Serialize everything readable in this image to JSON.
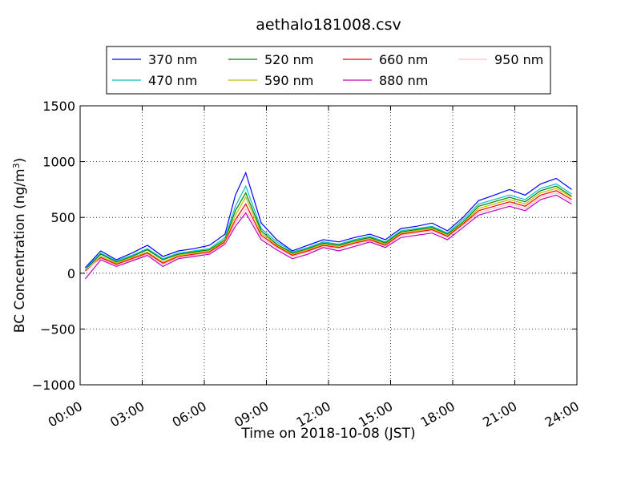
{
  "chart_data": {
    "type": "line",
    "title": "aethalo181008.csv",
    "xlabel": "Time on 2018-10-08 (JST)",
    "ylabel_main": "BC Concentration (ng/m",
    "ylabel_sup": "3",
    "ylabel_close": ")",
    "ylim": [
      -1000,
      1500
    ],
    "xlim_hours": [
      0,
      24
    ],
    "grid": true,
    "grid_style": "dotted",
    "legend_position": "top-center, above plot",
    "x_ticks": [
      {
        "hour": 0,
        "label": "00:00"
      },
      {
        "hour": 3,
        "label": "03:00"
      },
      {
        "hour": 6,
        "label": "06:00"
      },
      {
        "hour": 9,
        "label": "09:00"
      },
      {
        "hour": 12,
        "label": "12:00"
      },
      {
        "hour": 15,
        "label": "15:00"
      },
      {
        "hour": 18,
        "label": "18:00"
      },
      {
        "hour": 21,
        "label": "21:00"
      },
      {
        "hour": 24,
        "label": "24:00"
      }
    ],
    "y_ticks": [
      {
        "value": 1500,
        "label": "1500"
      },
      {
        "value": 1000,
        "label": "1000"
      },
      {
        "value": 500,
        "label": "500"
      },
      {
        "value": 0,
        "label": "0"
      },
      {
        "value": -500,
        "label": "−500"
      },
      {
        "value": -1000,
        "label": "−1000"
      }
    ],
    "x": [
      0.25,
      1.0,
      1.75,
      2.5,
      3.25,
      4.0,
      4.75,
      5.5,
      6.25,
      7.0,
      7.5,
      8.0,
      8.75,
      9.5,
      10.25,
      11.0,
      11.75,
      12.5,
      13.25,
      14.0,
      14.75,
      15.5,
      16.25,
      17.0,
      17.75,
      18.5,
      19.25,
      20.0,
      20.75,
      21.5,
      22.25,
      23.0,
      23.75
    ],
    "series": [
      {
        "name": "370 nm",
        "color": "#0000ff",
        "values": [
          50,
          200,
          120,
          180,
          250,
          150,
          200,
          220,
          250,
          350,
          700,
          900,
          450,
          300,
          200,
          250,
          300,
          280,
          320,
          350,
          300,
          400,
          420,
          450,
          380,
          500,
          650,
          700,
          750,
          700,
          800,
          850,
          750
        ]
      },
      {
        "name": "470 nm",
        "color": "#00bfbf",
        "values": [
          40,
          180,
          110,
          160,
          220,
          130,
          180,
          200,
          220,
          320,
          600,
          780,
          400,
          280,
          190,
          230,
          280,
          260,
          300,
          330,
          280,
          380,
          400,
          420,
          360,
          480,
          620,
          660,
          700,
          660,
          760,
          800,
          710
        ]
      },
      {
        "name": "520 nm",
        "color": "#008000",
        "values": [
          30,
          170,
          100,
          150,
          210,
          120,
          170,
          190,
          210,
          300,
          560,
          720,
          380,
          260,
          180,
          220,
          270,
          250,
          290,
          320,
          270,
          370,
          390,
          410,
          350,
          460,
          600,
          640,
          680,
          640,
          740,
          780,
          690
        ]
      },
      {
        "name": "590 nm",
        "color": "#bfbf00",
        "values": [
          20,
          150,
          90,
          140,
          190,
          100,
          160,
          180,
          200,
          290,
          520,
          680,
          360,
          250,
          170,
          210,
          260,
          240,
          280,
          310,
          260,
          360,
          380,
          400,
          340,
          450,
          580,
          620,
          660,
          620,
          720,
          760,
          680
        ]
      },
      {
        "name": "660 nm",
        "color": "#ff0000",
        "values": [
          20,
          140,
          80,
          130,
          180,
          90,
          150,
          170,
          190,
          280,
          480,
          620,
          340,
          240,
          160,
          200,
          250,
          230,
          270,
          300,
          250,
          350,
          370,
          390,
          330,
          440,
          560,
          600,
          640,
          600,
          700,
          740,
          660
        ]
      },
      {
        "name": "880 nm",
        "color": "#bf00bf",
        "values": [
          -50,
          120,
          60,
          110,
          160,
          60,
          130,
          150,
          170,
          260,
          420,
          540,
          300,
          210,
          130,
          170,
          230,
          200,
          240,
          280,
          230,
          320,
          340,
          360,
          300,
          410,
          520,
          560,
          600,
          560,
          660,
          700,
          620
        ]
      },
      {
        "name": "950 nm",
        "color": "#ffc0cb",
        "values": [
          30,
          130,
          70,
          120,
          170,
          80,
          140,
          160,
          180,
          270,
          450,
          580,
          320,
          230,
          150,
          190,
          240,
          220,
          260,
          290,
          240,
          340,
          360,
          380,
          320,
          430,
          540,
          580,
          620,
          580,
          680,
          720,
          640
        ]
      }
    ]
  }
}
